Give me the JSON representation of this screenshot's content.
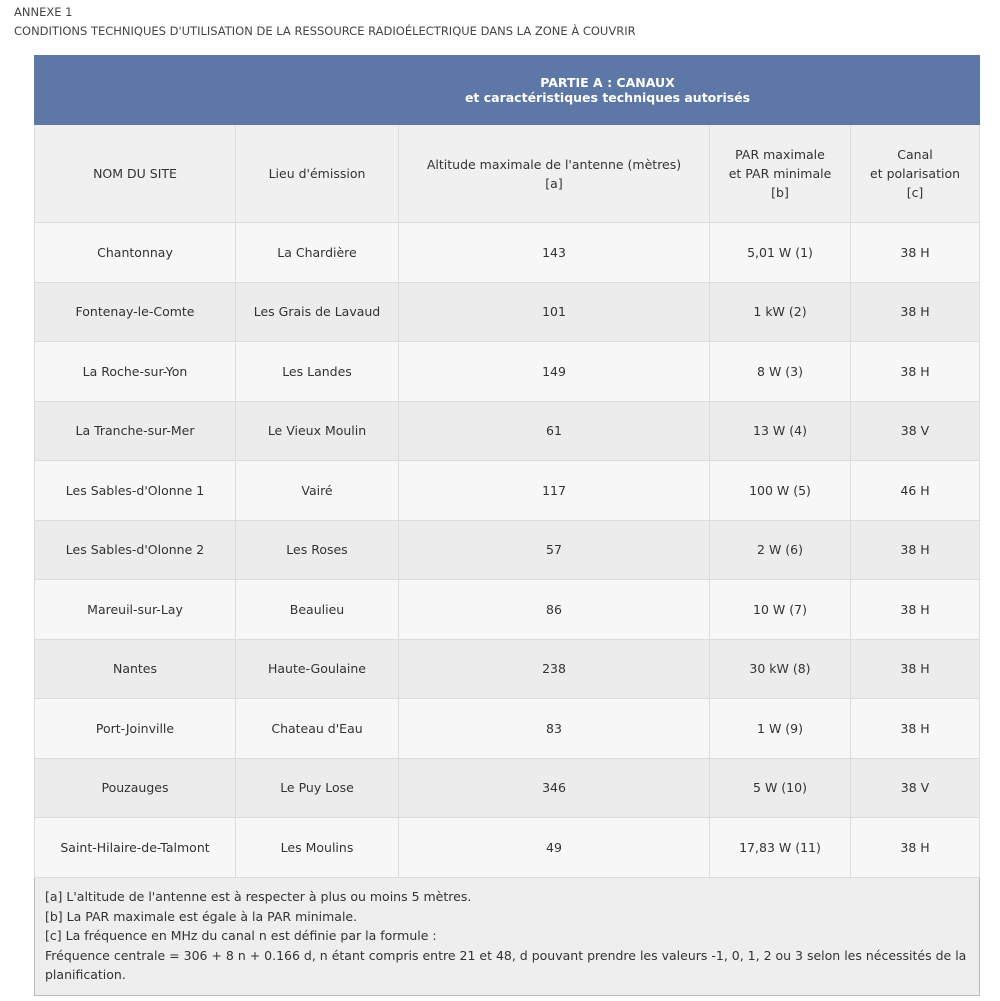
{
  "header": {
    "annex": "ANNEXE 1",
    "title": "CONDITIONS TECHNIQUES D'UTILISATION DE LA RESSOURCE RADIOÉLECTRIQUE DANS LA ZONE À COUVRIR"
  },
  "table": {
    "group_header": [
      "PARTIE A : CANAUX",
      "et caractéristiques techniques autorisés"
    ],
    "columns": [
      [
        "NOM DU SITE"
      ],
      [
        "Lieu d'émission"
      ],
      [
        "Altitude maximale de l'antenne (mètres)",
        "[a]"
      ],
      [
        "PAR maximale",
        "et PAR minimale",
        "[b]"
      ],
      [
        "Canal",
        "et polarisation",
        "[c]"
      ]
    ],
    "rows": [
      [
        "Chantonnay",
        "La Chardière",
        "143",
        "5,01 W (1)",
        "38 H"
      ],
      [
        "Fontenay-le-Comte",
        "Les Grais de Lavaud",
        "101",
        "1 kW (2)",
        "38 H"
      ],
      [
        "La Roche-sur-Yon",
        "Les Landes",
        "149",
        "8 W (3)",
        "38 H"
      ],
      [
        "La Tranche-sur-Mer",
        "Le Vieux Moulin",
        "61",
        "13 W (4)",
        "38 V"
      ],
      [
        "Les Sables-d'Olonne 1",
        "Vairé",
        "117",
        "100 W (5)",
        "46 H"
      ],
      [
        "Les Sables-d'Olonne 2",
        "Les Roses",
        "57",
        "2 W (6)",
        "38 H"
      ],
      [
        "Mareuil-sur-Lay",
        "Beaulieu",
        "86",
        "10 W (7)",
        "38 H"
      ],
      [
        "Nantes",
        "Haute-Goulaine",
        "238",
        "30 kW (8)",
        "38 H"
      ],
      [
        "Port-Joinville",
        "Chateau d'Eau",
        "83",
        "1 W (9)",
        "38 H"
      ],
      [
        "Pouzauges",
        "Le Puy Lose",
        "346",
        "5 W (10)",
        "38 V"
      ],
      [
        "Saint-Hilaire-de-Talmont",
        "Les Moulins",
        "49",
        "17,83 W (11)",
        "38 H"
      ]
    ],
    "notes": [
      "[a] L'altitude de l'antenne est à respecter à plus ou moins 5 mètres.",
      "[b] La PAR maximale est égale à la PAR minimale.",
      "[c] La fréquence en MHz du canal n est définie par la formule :",
      "Fréquence centrale = 306 + 8 n + 0.166 d, n étant compris entre 21 et 48, d pouvant prendre les valeurs -1, 0, 1, 2 ou 3 selon les nécessités de la planification."
    ]
  }
}
